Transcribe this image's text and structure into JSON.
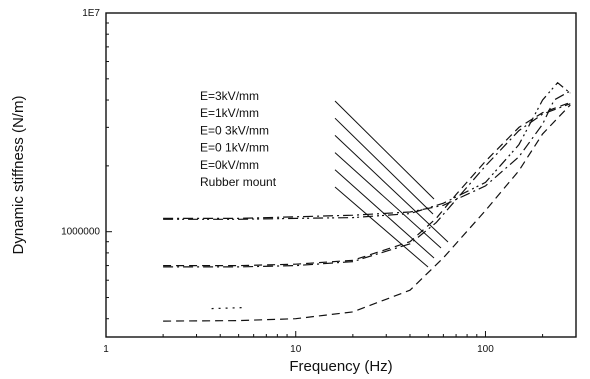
{
  "chart_data": {
    "type": "line",
    "xlabel": "Frequency (Hz)",
    "ylabel": "Dynamic stiffness (N/m)",
    "x_scale": "log",
    "y_scale": "log",
    "xlim": [
      1,
      300
    ],
    "ylim": [
      330000,
      10000000
    ],
    "x_ticks": [
      {
        "value": 1,
        "label": "1"
      },
      {
        "value": 10,
        "label": "10"
      },
      {
        "value": 100,
        "label": "100"
      }
    ],
    "y_ticks": [
      {
        "value": 1000000,
        "label": "1000000"
      },
      {
        "value": 10000000,
        "label": "1E7"
      }
    ],
    "grid": false,
    "legend": {
      "placement": "center",
      "entries": [
        "E=3kV/mm",
        "E=1kV/mm",
        "E=0 3kV/mm",
        "E=0 1kV/mm",
        "E=0kV/mm",
        "Rubber mount"
      ]
    },
    "series": [
      {
        "dash": "dashdot",
        "x": [
          2,
          5,
          10,
          20,
          40,
          60,
          100,
          150,
          200,
          230,
          280
        ],
        "y": [
          1150000,
          1150000,
          1170000,
          1190000,
          1230000,
          1320000,
          1620000,
          2200000,
          3100000,
          4000000,
          4400000
        ]
      },
      {
        "dash": "dashdotdot",
        "x": [
          2,
          5,
          10,
          20,
          40,
          60,
          100,
          150,
          200,
          240,
          280
        ],
        "y": [
          1140000,
          1140000,
          1150000,
          1160000,
          1210000,
          1350000,
          1680000,
          2500000,
          4000000,
          4800000,
          4300000
        ]
      },
      {
        "dash": "dash",
        "x": [
          2,
          5,
          10,
          20,
          40,
          55,
          70,
          100,
          150,
          200,
          280
        ],
        "y": [
          700000,
          700000,
          710000,
          740000,
          900000,
          1150000,
          1480000,
          2100000,
          3000000,
          3500000,
          3900000
        ]
      },
      {
        "dash": "dashdot",
        "x": [
          2,
          5,
          10,
          20,
          40,
          55,
          70,
          100,
          150,
          200,
          280
        ],
        "y": [
          690000,
          690000,
          700000,
          730000,
          880000,
          1100000,
          1400000,
          2000000,
          2900000,
          3450000,
          3850000
        ]
      },
      {
        "dash": "dash",
        "x": [
          2,
          5,
          10,
          20,
          40,
          60,
          100,
          150,
          200,
          280
        ],
        "y": [
          390000,
          392000,
          400000,
          430000,
          540000,
          760000,
          1250000,
          1900000,
          2800000,
          3800000
        ]
      },
      {
        "dash": "dot",
        "x": [
          3.6,
          5.5
        ],
        "y": [
          445000,
          450000
        ]
      }
    ]
  }
}
